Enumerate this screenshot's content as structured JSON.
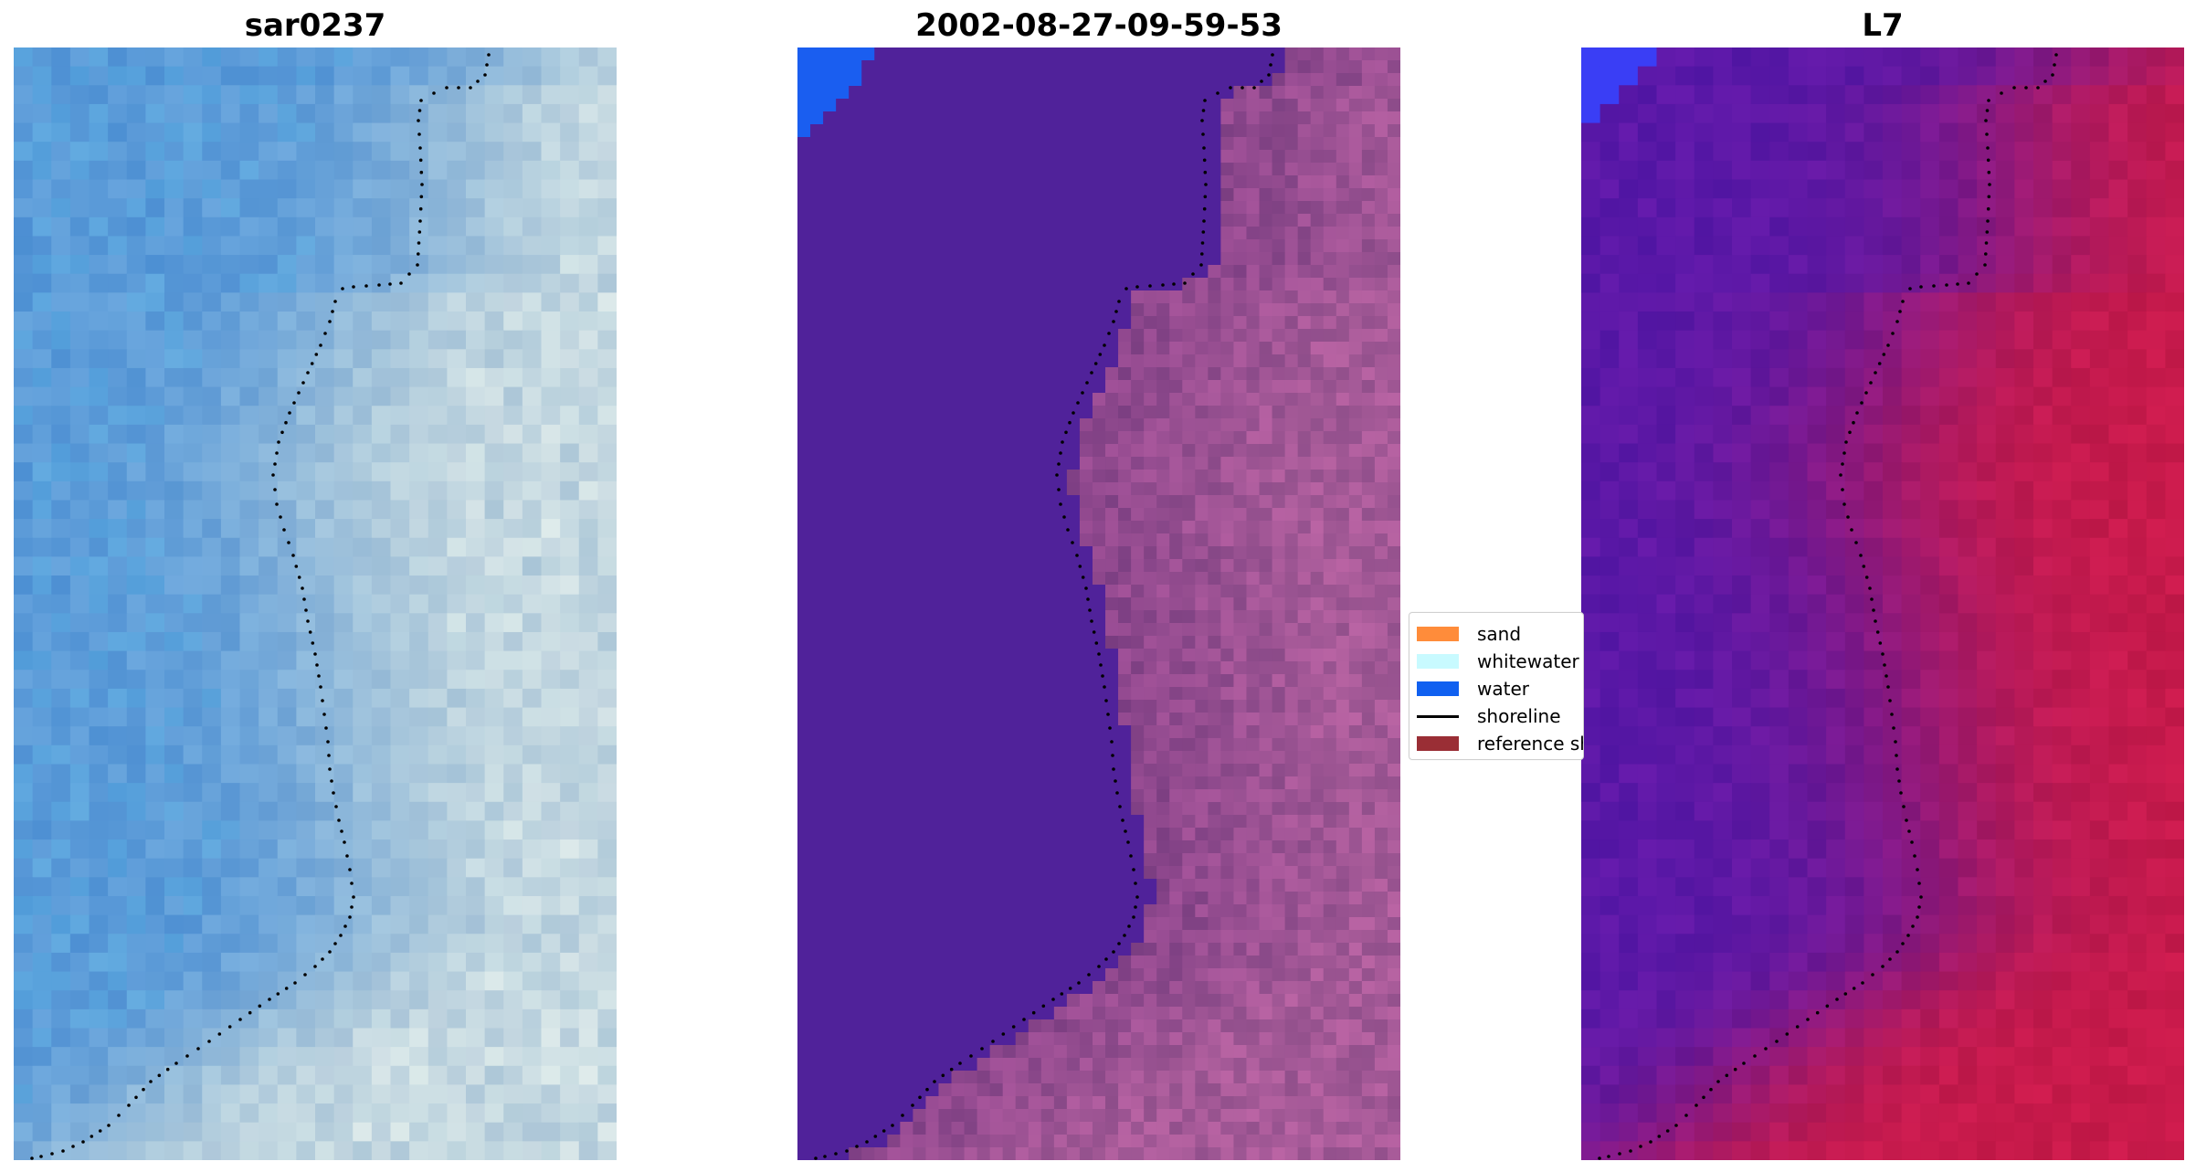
{
  "panels": [
    {
      "title": "sar0237"
    },
    {
      "title": "2002-08-27-09-59-53"
    },
    {
      "title": "L7"
    }
  ],
  "legend": {
    "items": [
      {
        "label": "sand",
        "color": "#ff8c3a",
        "kind": "swatch"
      },
      {
        "label": "whitewater",
        "color": "#c8faff",
        "kind": "swatch"
      },
      {
        "label": "water",
        "color": "#1060f0",
        "kind": "swatch"
      },
      {
        "label": "shoreline",
        "color": "#000000",
        "kind": "line"
      },
      {
        "label": "reference shoreline",
        "color": "#9a2e35",
        "kind": "swatch"
      }
    ]
  },
  "colors": {
    "rgb_water": "#5a9ad8",
    "rgb_land": "#b8d0dc",
    "classified_water_bg": "#50229a",
    "classified_land": "#a65a98",
    "classified_water_class": "#1a5ef0",
    "ndwi_water": "#5a18a8",
    "ndwi_land": "#c81a4a",
    "ndwi_blue": "#3a3ef5",
    "shoreline": "#000000"
  }
}
